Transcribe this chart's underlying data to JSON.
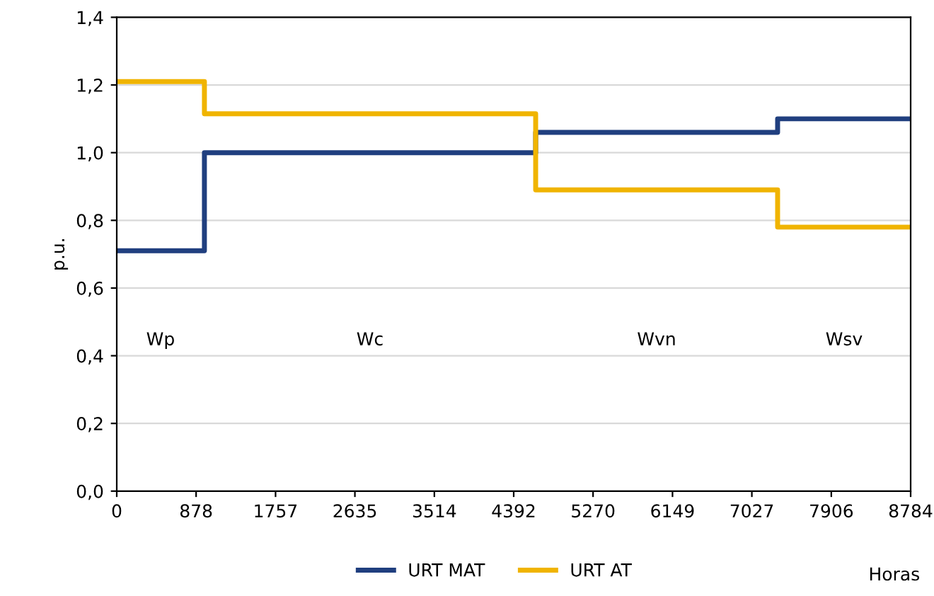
{
  "chart_data": {
    "type": "step",
    "ylabel": "p.u.",
    "xlabel": "Horas",
    "x": [
      0,
      970,
      4635,
      7312,
      8784
    ],
    "series": [
      {
        "name": "URT MAT",
        "color": "#203f7f",
        "values": [
          0.71,
          1.0,
          1.06,
          1.1,
          1.1
        ]
      },
      {
        "name": "URT AT",
        "color": "#f0b400",
        "values": [
          1.21,
          1.115,
          0.89,
          0.78,
          0.78
        ]
      }
    ],
    "xlim": [
      0,
      8784
    ],
    "xticks": [
      0,
      878,
      1757,
      2635,
      3514,
      4392,
      5270,
      6149,
      7027,
      7906,
      8784
    ],
    "ylim": [
      0,
      1.4
    ],
    "yticks": [
      {
        "value": 0,
        "label": "0,0"
      },
      {
        "value": 0.2,
        "label": "0,2"
      },
      {
        "value": 0.4,
        "label": "0,4"
      },
      {
        "value": 0.6,
        "label": "0,6"
      },
      {
        "value": 0.8,
        "label": "0,8"
      },
      {
        "value": 1.0,
        "label": "1,0"
      },
      {
        "value": 1.2,
        "label": "1,2"
      },
      {
        "value": 1.4,
        "label": "1,4"
      }
    ],
    "grid": "y",
    "legend": "bottom",
    "line_style": "solid",
    "annotations": [
      "Wp",
      "Wc",
      "Wvn",
      "Wsv"
    ]
  }
}
